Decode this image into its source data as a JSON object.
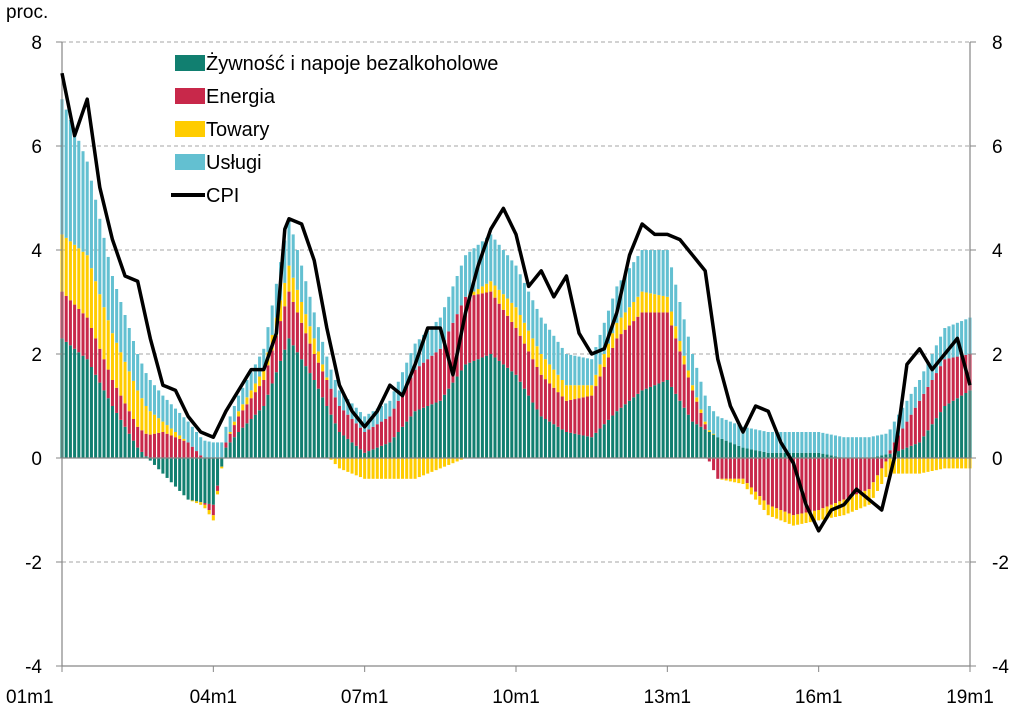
{
  "chart_data": {
    "type": "bar",
    "stacked": true,
    "y_unit_label": "proc.",
    "x_ticks": [
      "01m1",
      "04m1",
      "07m1",
      "10m1",
      "13m1",
      "16m1",
      "19m1"
    ],
    "x_start": "2001-01",
    "x_end": "2019-01",
    "y_ticks": [
      "8",
      "6",
      "4",
      "2",
      "0",
      "-2",
      "-4"
    ],
    "ylim": [
      -4,
      8
    ],
    "grid": true,
    "legend_position": "top-left",
    "colors": {
      "food": "#117f70",
      "energy": "#c8284a",
      "goods": "#ffcc00",
      "services": "#63c0d1",
      "cpi": "#000000"
    },
    "series_order": [
      "food",
      "energy",
      "goods",
      "services"
    ],
    "series": [
      {
        "key": "food",
        "name": "Żywność i napoje bezalkoholowe",
        "knots": [
          [
            0,
            2.3
          ],
          [
            6,
            1.9
          ],
          [
            12,
            1.0
          ],
          [
            18,
            0.2
          ],
          [
            24,
            -0.3
          ],
          [
            30,
            -0.8
          ],
          [
            36,
            -0.9
          ],
          [
            39,
            0.2
          ],
          [
            42,
            0.5
          ],
          [
            48,
            1.0
          ],
          [
            54,
            2.3
          ],
          [
            60,
            1.5
          ],
          [
            66,
            0.5
          ],
          [
            72,
            0.1
          ],
          [
            78,
            0.3
          ],
          [
            84,
            0.9
          ],
          [
            90,
            1.1
          ],
          [
            96,
            1.8
          ],
          [
            102,
            2.0
          ],
          [
            108,
            1.6
          ],
          [
            114,
            0.8
          ],
          [
            120,
            0.5
          ],
          [
            126,
            0.4
          ],
          [
            132,
            0.9
          ],
          [
            138,
            1.3
          ],
          [
            144,
            1.5
          ],
          [
            150,
            0.7
          ],
          [
            156,
            0.4
          ],
          [
            162,
            0.2
          ],
          [
            168,
            0.1
          ],
          [
            174,
            0.1
          ],
          [
            180,
            0.1
          ],
          [
            186,
            0.0
          ],
          [
            192,
            0.0
          ],
          [
            198,
            0.1
          ],
          [
            204,
            0.3
          ],
          [
            210,
            1.0
          ],
          [
            216,
            1.3
          ],
          [
            222,
            1.2
          ],
          [
            228,
            0.6
          ],
          [
            234,
            0.3
          ],
          [
            216,
            1.3
          ]
        ]
      },
      {
        "key": "energy",
        "name": "Energia",
        "knots": [
          [
            0,
            0.9
          ],
          [
            6,
            0.8
          ],
          [
            12,
            0.5
          ],
          [
            18,
            0.4
          ],
          [
            24,
            0.5
          ],
          [
            30,
            0.3
          ],
          [
            36,
            -0.2
          ],
          [
            39,
            0.1
          ],
          [
            42,
            0.3
          ],
          [
            48,
            0.5
          ],
          [
            54,
            0.9
          ],
          [
            60,
            0.5
          ],
          [
            66,
            0.5
          ],
          [
            72,
            0.4
          ],
          [
            78,
            0.5
          ],
          [
            84,
            0.8
          ],
          [
            90,
            1.0
          ],
          [
            96,
            1.3
          ],
          [
            102,
            1.2
          ],
          [
            108,
            0.9
          ],
          [
            114,
            0.8
          ],
          [
            120,
            0.6
          ],
          [
            126,
            0.8
          ],
          [
            132,
            1.4
          ],
          [
            138,
            1.5
          ],
          [
            144,
            1.3
          ],
          [
            150,
            0.6
          ],
          [
            156,
            -0.4
          ],
          [
            162,
            -0.4
          ],
          [
            168,
            -0.9
          ],
          [
            174,
            -1.1
          ],
          [
            180,
            -1.0
          ],
          [
            186,
            -0.8
          ],
          [
            192,
            -0.6
          ],
          [
            198,
            0.2
          ],
          [
            204,
            0.8
          ],
          [
            210,
            0.9
          ],
          [
            216,
            0.7
          ],
          [
            222,
            0.7
          ],
          [
            228,
            0.6
          ],
          [
            234,
            0.5
          ]
        ]
      },
      {
        "key": "goods",
        "name": "Towary",
        "knots": [
          [
            0,
            1.1
          ],
          [
            6,
            1.2
          ],
          [
            12,
            0.9
          ],
          [
            18,
            0.7
          ],
          [
            24,
            0.2
          ],
          [
            30,
            0.0
          ],
          [
            36,
            -0.1
          ],
          [
            42,
            0.1
          ],
          [
            48,
            0.2
          ],
          [
            54,
            0.5
          ],
          [
            60,
            0.3
          ],
          [
            66,
            -0.2
          ],
          [
            72,
            -0.4
          ],
          [
            78,
            -0.4
          ],
          [
            84,
            -0.4
          ],
          [
            90,
            -0.2
          ],
          [
            96,
            0.0
          ],
          [
            102,
            0.2
          ],
          [
            108,
            0.4
          ],
          [
            114,
            0.4
          ],
          [
            120,
            0.3
          ],
          [
            126,
            0.2
          ],
          [
            132,
            0.3
          ],
          [
            138,
            0.4
          ],
          [
            144,
            0.3
          ],
          [
            150,
            0.1
          ],
          [
            156,
            0.0
          ],
          [
            162,
            -0.1
          ],
          [
            168,
            -0.2
          ],
          [
            174,
            -0.2
          ],
          [
            180,
            -0.2
          ],
          [
            186,
            -0.3
          ],
          [
            192,
            -0.3
          ],
          [
            198,
            -0.3
          ],
          [
            204,
            -0.3
          ],
          [
            210,
            -0.2
          ],
          [
            216,
            -0.2
          ],
          [
            222,
            -0.1
          ],
          [
            228,
            0.0
          ],
          [
            234,
            0.1
          ]
        ]
      },
      {
        "key": "services",
        "name": "Usługi",
        "knots": [
          [
            0,
            2.6
          ],
          [
            6,
            1.8
          ],
          [
            12,
            1.1
          ],
          [
            18,
            0.7
          ],
          [
            24,
            0.5
          ],
          [
            30,
            0.4
          ],
          [
            36,
            0.3
          ],
          [
            42,
            0.3
          ],
          [
            48,
            0.4
          ],
          [
            54,
            0.9
          ],
          [
            60,
            0.5
          ],
          [
            66,
            0.3
          ],
          [
            72,
            0.3
          ],
          [
            78,
            0.3
          ],
          [
            84,
            0.5
          ],
          [
            90,
            0.6
          ],
          [
            96,
            0.8
          ],
          [
            102,
            0.9
          ],
          [
            108,
            0.8
          ],
          [
            114,
            0.7
          ],
          [
            120,
            0.6
          ],
          [
            126,
            0.5
          ],
          [
            132,
            0.7
          ],
          [
            138,
            0.8
          ],
          [
            144,
            0.9
          ],
          [
            150,
            0.6
          ],
          [
            156,
            0.4
          ],
          [
            162,
            0.4
          ],
          [
            168,
            0.4
          ],
          [
            174,
            0.4
          ],
          [
            180,
            0.4
          ],
          [
            186,
            0.4
          ],
          [
            192,
            0.4
          ],
          [
            198,
            0.4
          ],
          [
            204,
            0.4
          ],
          [
            210,
            0.6
          ],
          [
            216,
            0.7
          ],
          [
            222,
            0.6
          ],
          [
            228,
            0.5
          ],
          [
            234,
            0.3
          ]
        ]
      },
      {
        "key": "cpi",
        "name": "CPI",
        "type": "line",
        "knots": [
          [
            0,
            7.4
          ],
          [
            3,
            6.2
          ],
          [
            6,
            6.9
          ],
          [
            9,
            5.2
          ],
          [
            12,
            4.2
          ],
          [
            15,
            3.5
          ],
          [
            18,
            3.4
          ],
          [
            21,
            2.3
          ],
          [
            24,
            1.4
          ],
          [
            27,
            1.3
          ],
          [
            30,
            0.8
          ],
          [
            33,
            0.5
          ],
          [
            36,
            0.4
          ],
          [
            39,
            0.9
          ],
          [
            42,
            1.3
          ],
          [
            45,
            1.7
          ],
          [
            48,
            1.7
          ],
          [
            51,
            2.4
          ],
          [
            53,
            4.4
          ],
          [
            54,
            4.6
          ],
          [
            57,
            4.5
          ],
          [
            60,
            3.8
          ],
          [
            63,
            2.5
          ],
          [
            66,
            1.4
          ],
          [
            69,
            0.9
          ],
          [
            72,
            0.6
          ],
          [
            75,
            0.9
          ],
          [
            78,
            1.4
          ],
          [
            81,
            1.2
          ],
          [
            84,
            1.8
          ],
          [
            87,
            2.5
          ],
          [
            90,
            2.5
          ],
          [
            93,
            1.6
          ],
          [
            96,
            2.8
          ],
          [
            99,
            3.7
          ],
          [
            102,
            4.4
          ],
          [
            105,
            4.8
          ],
          [
            108,
            4.3
          ],
          [
            111,
            3.3
          ],
          [
            114,
            3.6
          ],
          [
            117,
            3.1
          ],
          [
            120,
            3.5
          ],
          [
            123,
            2.4
          ],
          [
            126,
            2.0
          ],
          [
            129,
            2.1
          ],
          [
            132,
            2.8
          ],
          [
            135,
            3.9
          ],
          [
            138,
            4.5
          ],
          [
            141,
            4.3
          ],
          [
            144,
            4.3
          ],
          [
            147,
            4.2
          ],
          [
            150,
            3.9
          ],
          [
            153,
            3.6
          ],
          [
            156,
            1.9
          ],
          [
            159,
            1.0
          ],
          [
            162,
            0.5
          ],
          [
            165,
            1.0
          ],
          [
            168,
            0.9
          ],
          [
            171,
            0.3
          ],
          [
            174,
            -0.1
          ],
          [
            177,
            -0.9
          ],
          [
            180,
            -1.4
          ],
          [
            183,
            -1.0
          ],
          [
            186,
            -0.9
          ],
          [
            189,
            -0.6
          ],
          [
            192,
            -0.8
          ],
          [
            195,
            -1.0
          ],
          [
            198,
            0.0
          ],
          [
            201,
            1.8
          ],
          [
            204,
            2.1
          ],
          [
            207,
            1.7
          ],
          [
            210,
            2.0
          ],
          [
            213,
            2.3
          ],
          [
            216,
            1.4
          ],
          [
            219,
            1.6
          ],
          [
            222,
            1.8
          ],
          [
            225,
            1.6
          ],
          [
            228,
            1.2
          ],
          [
            231,
            1.0
          ],
          [
            234,
            0.9
          ]
        ]
      }
    ]
  }
}
